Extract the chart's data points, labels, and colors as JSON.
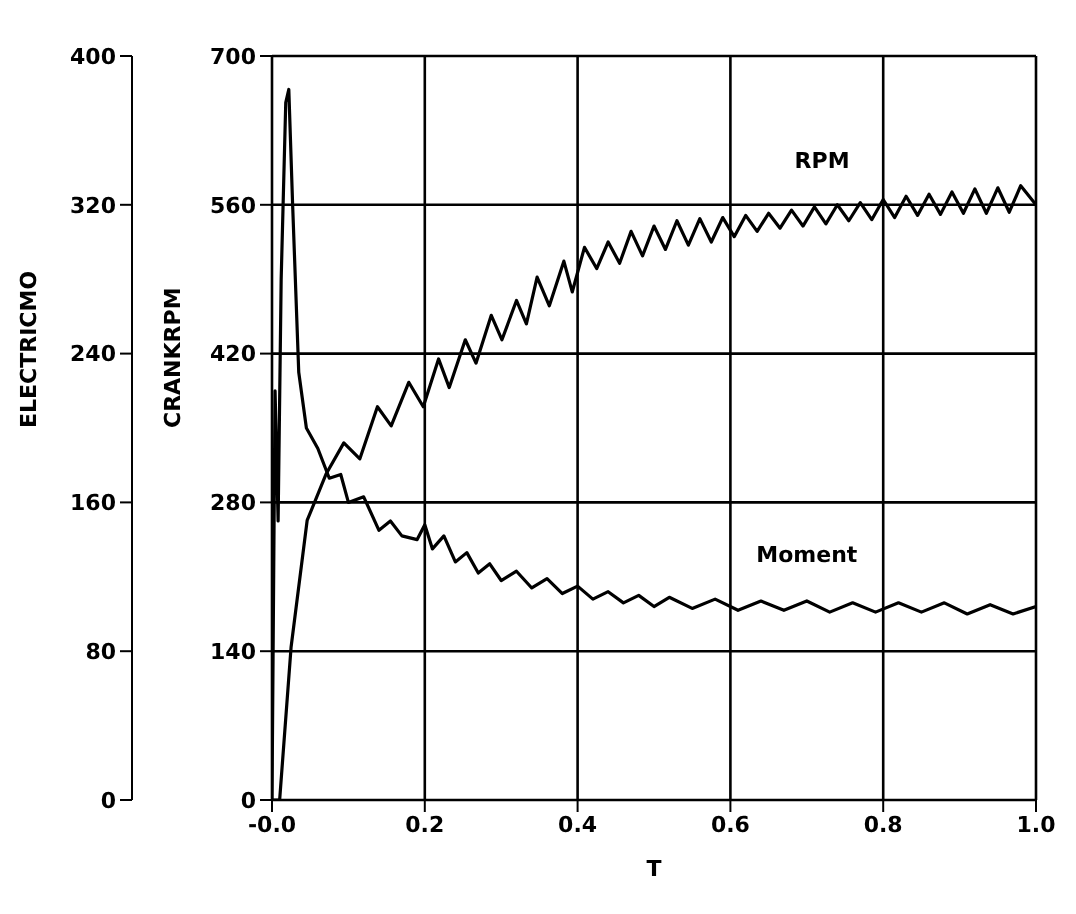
{
  "chart_data": {
    "type": "line",
    "xlabel": "T",
    "ylabel": "ELECTRICMO",
    "y2label": "CRANKRPM",
    "xlim": [
      0,
      1
    ],
    "xticks": [
      {
        "value": 0,
        "label": "-0.0"
      },
      0.2,
      0.4,
      0.6,
      0.8,
      {
        "value": 1,
        "label": "1.0"
      }
    ],
    "ylim": [
      0,
      400
    ],
    "yticks": [
      0,
      80,
      160,
      240,
      320,
      400
    ],
    "y2lim": [
      0,
      700
    ],
    "y2ticks": [
      0,
      140,
      280,
      420,
      560,
      700
    ],
    "grid": true,
    "legend": false,
    "marker": "none",
    "line_style": "solid",
    "series": [
      {
        "name": "RPM",
        "color": "#000000",
        "axis": "y2",
        "x": [
          0,
          0.01,
          0.025,
          0.046,
          0.071,
          0.094,
          0.115,
          0.138,
          0.156,
          0.179,
          0.198,
          0.218,
          0.232,
          0.253,
          0.267,
          0.287,
          0.301,
          0.32,
          0.333,
          0.347,
          0.363,
          0.382,
          0.393,
          0.409,
          0.425,
          0.44,
          0.455,
          0.47,
          0.485,
          0.5,
          0.515,
          0.53,
          0.545,
          0.56,
          0.575,
          0.59,
          0.605,
          0.62,
          0.635,
          0.65,
          0.665,
          0.68,
          0.695,
          0.71,
          0.725,
          0.74,
          0.755,
          0.77,
          0.785,
          0.8,
          0.815,
          0.83,
          0.845,
          0.86,
          0.875,
          0.89,
          0.905,
          0.92,
          0.935,
          0.95,
          0.965,
          0.98,
          1.0
        ],
        "values": [
          0,
          0,
          144,
          263,
          307,
          336,
          321,
          370,
          352,
          393,
          370,
          415,
          388,
          433,
          411,
          456,
          433,
          470,
          448,
          492,
          465,
          507,
          478,
          520,
          500,
          525,
          505,
          535,
          512,
          540,
          518,
          545,
          522,
          547,
          525,
          548,
          530,
          550,
          535,
          552,
          538,
          555,
          540,
          558,
          542,
          560,
          545,
          562,
          546,
          565,
          548,
          568,
          550,
          570,
          551,
          572,
          552,
          575,
          552,
          576,
          553,
          578,
          560
        ]
      },
      {
        "name": "Moment",
        "color": "#000000",
        "axis": "y",
        "x": [
          0,
          0.004,
          0.008,
          0.012,
          0.018,
          0.022,
          0.027,
          0.035,
          0.045,
          0.06,
          0.075,
          0.09,
          0.1,
          0.12,
          0.14,
          0.155,
          0.17,
          0.19,
          0.2,
          0.21,
          0.225,
          0.24,
          0.255,
          0.27,
          0.285,
          0.3,
          0.32,
          0.34,
          0.36,
          0.38,
          0.4,
          0.42,
          0.44,
          0.46,
          0.48,
          0.5,
          0.52,
          0.55,
          0.58,
          0.61,
          0.64,
          0.67,
          0.7,
          0.73,
          0.76,
          0.79,
          0.82,
          0.85,
          0.88,
          0.91,
          0.94,
          0.97,
          1.0
        ],
        "values": [
          0,
          220,
          150,
          280,
          375,
          382,
          320,
          230,
          200,
          189,
          173,
          175,
          160,
          163,
          145,
          150,
          142,
          140,
          148,
          135,
          142,
          128,
          133,
          122,
          127,
          118,
          123,
          114,
          119,
          111,
          115,
          108,
          112,
          106,
          110,
          104,
          109,
          103,
          108,
          102,
          107,
          102,
          107,
          101,
          106,
          101,
          106,
          101,
          106,
          100,
          105,
          100,
          104
        ]
      }
    ]
  }
}
